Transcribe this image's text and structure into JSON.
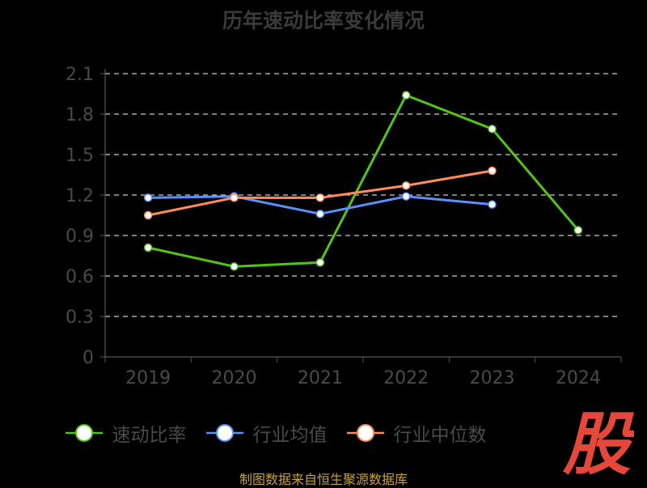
{
  "chart_data": {
    "type": "line",
    "title": "历年速动比率变化情况",
    "categories": [
      "2019",
      "2020",
      "2021",
      "2022",
      "2023",
      "2024"
    ],
    "series": [
      {
        "name": "速动比率",
        "color": "#52c41a",
        "values": [
          0.81,
          0.67,
          0.7,
          1.94,
          1.69,
          0.94
        ]
      },
      {
        "name": "行业均值",
        "color": "#5b8ff9",
        "values": [
          1.18,
          1.19,
          1.06,
          1.19,
          1.13,
          null
        ]
      },
      {
        "name": "行业中位数",
        "color": "#ff8c5a",
        "values": [
          1.05,
          1.18,
          1.18,
          1.27,
          1.38,
          null
        ]
      }
    ],
    "y_ticks": [
      "0",
      "0.3",
      "0.6",
      "0.9",
      "1.2",
      "1.5",
      "1.8",
      "2.1"
    ],
    "ylim": [
      0,
      2.1
    ],
    "grid": "dashed horizontal",
    "legend_position": "bottom",
    "source": "制图数据来自恒生聚源数据库"
  },
  "colors": {
    "background": "#000000",
    "axis": "#555555",
    "grid": "#cccccc",
    "tick_label": "#4a4a4a",
    "source": "#c9a23a",
    "logo": "#e5483a"
  },
  "logo": {
    "glyph": "股"
  }
}
